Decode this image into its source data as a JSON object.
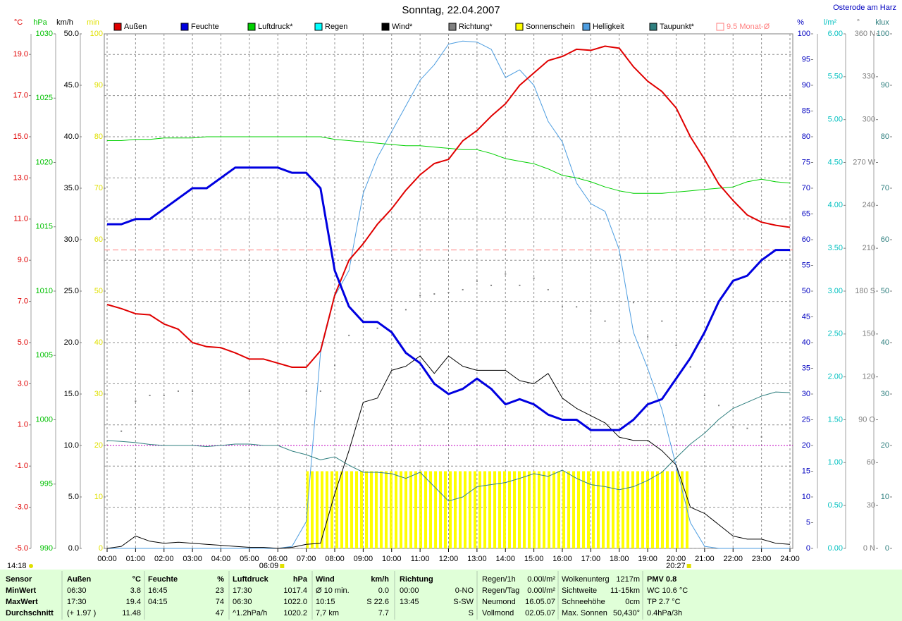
{
  "chart_data": {
    "type": "line",
    "title": "Sonntag, 22.04.2007",
    "location": "Osterode am Harz",
    "xlim": [
      0,
      24
    ],
    "xticks": [
      {
        "value": 0,
        "label": "00:00"
      },
      {
        "value": 1,
        "label": "01:00"
      },
      {
        "value": 2,
        "label": "02:00"
      },
      {
        "value": 3,
        "label": "03:00"
      },
      {
        "value": 4,
        "label": "04:00"
      },
      {
        "value": 5,
        "label": "05:00"
      },
      {
        "value": 6,
        "label": "06:00"
      },
      {
        "value": 7,
        "label": "07:00"
      },
      {
        "value": 8,
        "label": "08:00"
      },
      {
        "value": 9,
        "label": "09:00"
      },
      {
        "value": 10,
        "label": "10:00"
      },
      {
        "value": 11,
        "label": "11:00"
      },
      {
        "value": 12,
        "label": "12:00"
      },
      {
        "value": 13,
        "label": "13:00"
      },
      {
        "value": 14,
        "label": "14:00"
      },
      {
        "value": 15,
        "label": "15:00"
      },
      {
        "value": 16,
        "label": "16:00"
      },
      {
        "value": 17,
        "label": "17:00"
      },
      {
        "value": 18,
        "label": "18:00"
      },
      {
        "value": 19,
        "label": "19:00"
      },
      {
        "value": 20,
        "label": "20:00"
      },
      {
        "value": 21,
        "label": "21:00"
      },
      {
        "value": 22,
        "label": "22:00"
      },
      {
        "value": 23,
        "label": "23:00"
      },
      {
        "value": 24,
        "label": "24:00"
      }
    ],
    "xgrid": true,
    "x": [
      0,
      0.5,
      1,
      1.5,
      2,
      2.5,
      3,
      3.5,
      4,
      4.5,
      5,
      5.5,
      6,
      6.5,
      7,
      7.5,
      8,
      8.5,
      9,
      9.5,
      10,
      10.5,
      11,
      11.5,
      12,
      12.5,
      13,
      13.5,
      14,
      14.5,
      15,
      15.5,
      16,
      16.5,
      17,
      17.5,
      18,
      18.5,
      19,
      19.5,
      20,
      20.5,
      21,
      21.5,
      22,
      22.5,
      23,
      23.5,
      24
    ],
    "time_label": "14:18",
    "sunrise": {
      "value": 6.15,
      "label": "06:09"
    },
    "sunset": {
      "value": 20.45,
      "label": "20:27"
    },
    "axes": [
      {
        "unit": "°C",
        "color": "#e00000",
        "ylim": [
          -5,
          20
        ],
        "grid": true,
        "yticks": [
          {
            "value": -5,
            "label": "-5.0"
          },
          {
            "value": -3,
            "label": "-3.0"
          },
          {
            "value": -1,
            "label": "-1.0"
          },
          {
            "value": 1,
            "label": "1.0"
          },
          {
            "value": 3,
            "label": "3.0"
          },
          {
            "value": 5,
            "label": "5.0"
          },
          {
            "value": 7,
            "label": "7.0"
          },
          {
            "value": 9,
            "label": "9.0"
          },
          {
            "value": 11,
            "label": "11.0"
          },
          {
            "value": 13,
            "label": "13.0"
          },
          {
            "value": 15,
            "label": "15.0"
          },
          {
            "value": 17,
            "label": "17.0"
          },
          {
            "value": 19,
            "label": "19.0"
          }
        ]
      },
      {
        "unit": "hPa",
        "color": "#00c000",
        "ylim": [
          990,
          1030
        ],
        "yticks": [
          990,
          995,
          1000,
          1005,
          1010,
          1015,
          1020,
          1025,
          1030
        ]
      },
      {
        "unit": "km/h",
        "color": "#000000",
        "ylim": [
          0,
          50
        ],
        "yticks": [
          {
            "value": 0,
            "label": "0.0"
          },
          {
            "value": 5,
            "label": "5.0"
          },
          {
            "value": 10,
            "label": "10.0"
          },
          {
            "value": 15,
            "label": "15.0"
          },
          {
            "value": 20,
            "label": "20.0"
          },
          {
            "value": 25,
            "label": "25.0"
          },
          {
            "value": 30,
            "label": "30.0"
          },
          {
            "value": 35,
            "label": "35.0"
          },
          {
            "value": 40,
            "label": "40.0"
          },
          {
            "value": 45,
            "label": "45.0"
          },
          {
            "value": 50,
            "label": "50.0"
          }
        ]
      },
      {
        "unit": "min",
        "color": "#e0e000",
        "ylim": [
          0,
          100
        ],
        "yticks": [
          0,
          10,
          20,
          30,
          40,
          50,
          60,
          70,
          80,
          90,
          100
        ]
      },
      {
        "unit": "%",
        "color": "#0000c0",
        "ylim": [
          0,
          100
        ],
        "yticks": [
          0,
          5,
          10,
          15,
          20,
          25,
          30,
          35,
          40,
          45,
          50,
          55,
          60,
          65,
          70,
          75,
          80,
          85,
          90,
          95,
          100
        ]
      },
      {
        "unit": "l/m²",
        "color": "#00c0c0",
        "ylim": [
          0,
          6
        ],
        "yticks": [
          {
            "value": 0,
            "label": "0.00"
          },
          {
            "value": 0.5,
            "label": "0.50"
          },
          {
            "value": 1,
            "label": "1.00"
          },
          {
            "value": 1.5,
            "label": "1.50"
          },
          {
            "value": 2,
            "label": "2.00"
          },
          {
            "value": 2.5,
            "label": "2.50"
          },
          {
            "value": 3,
            "label": "3.00"
          },
          {
            "value": 3.5,
            "label": "3.50"
          },
          {
            "value": 4,
            "label": "4.00"
          },
          {
            "value": 4.5,
            "label": "4.50"
          },
          {
            "value": 5,
            "label": "5.00"
          },
          {
            "value": 5.5,
            "label": "5.50"
          },
          {
            "value": 6,
            "label": "6.00"
          }
        ]
      },
      {
        "unit": "°",
        "color": "#808080",
        "ylim": [
          0,
          360
        ],
        "yticks": [
          {
            "value": 0,
            "label": "0 N"
          },
          30,
          60,
          {
            "value": 90,
            "label": "90 O"
          },
          120,
          150,
          {
            "value": 180,
            "label": "180 S"
          },
          210,
          240,
          {
            "value": 270,
            "label": "270 W"
          },
          300,
          330,
          {
            "value": 360,
            "label": "360 N"
          }
        ]
      },
      {
        "unit": "klux",
        "color": "#308080",
        "ylim": [
          0,
          100
        ],
        "yticks": [
          0,
          10,
          20,
          30,
          40,
          50,
          60,
          70,
          80,
          90,
          100
        ]
      }
    ],
    "reference_lines": [
      {
        "axis": 2,
        "value": 10,
        "color": "#c000c0"
      }
    ],
    "series": [
      {
        "name": "Außen",
        "color": "#e00000",
        "axis": 0,
        "values": [
          6.85,
          6.65,
          6.4,
          6.35,
          5.9,
          5.65,
          5.0,
          4.8,
          4.75,
          4.5,
          4.2,
          4.2,
          4.0,
          3.8,
          3.8,
          4.6,
          7.3,
          9.0,
          9.8,
          10.75,
          11.5,
          12.4,
          13.15,
          13.7,
          13.9,
          14.8,
          15.3,
          16.0,
          16.6,
          17.5,
          18.1,
          18.7,
          18.9,
          19.25,
          19.2,
          19.4,
          19.3,
          18.4,
          17.7,
          17.2,
          16.4,
          15.0,
          13.9,
          12.7,
          11.9,
          11.2,
          10.85,
          10.7,
          10.6
        ]
      },
      {
        "name": "Feuchte",
        "color": "#0000e0",
        "axis": 4,
        "values": [
          63,
          63,
          64,
          64,
          66,
          68,
          70,
          70,
          72,
          74,
          74,
          74,
          74,
          73,
          73,
          70,
          54,
          47,
          44,
          44,
          42,
          38,
          36,
          32,
          30,
          31,
          33,
          31,
          28,
          29,
          28,
          26,
          25,
          25,
          23,
          23,
          23,
          25,
          28,
          29,
          33,
          37,
          42,
          48,
          52,
          53,
          56,
          58,
          58
        ]
      },
      {
        "name": "Luftdruck*",
        "color": "#00d000",
        "axis": 1,
        "values": [
          1021.7,
          1021.7,
          1021.8,
          1021.8,
          1021.9,
          1021.9,
          1021.9,
          1022.0,
          1022.0,
          1022.0,
          1022.0,
          1022.0,
          1022.0,
          1022.0,
          1022.0,
          1022.0,
          1021.8,
          1021.7,
          1021.6,
          1021.5,
          1021.4,
          1021.3,
          1021.3,
          1021.2,
          1021.1,
          1021.0,
          1021.0,
          1020.7,
          1020.3,
          1020.1,
          1019.9,
          1019.5,
          1019.0,
          1018.8,
          1018.5,
          1018.1,
          1017.8,
          1017.6,
          1017.6,
          1017.6,
          1017.7,
          1017.8,
          1017.9,
          1018.0,
          1018.1,
          1018.5,
          1018.7,
          1018.5,
          1018.4
        ]
      },
      {
        "name": "Regen",
        "color": "#00ffff",
        "axis": 5
      },
      {
        "name": "Wind*",
        "color": "#000000",
        "axis": 2,
        "values": [
          0,
          0.2,
          1.2,
          0.7,
          0.5,
          0.6,
          0.5,
          0.4,
          0.3,
          0.2,
          0.1,
          0.1,
          0,
          0.1,
          0.4,
          0.5,
          5.3,
          9.5,
          14.2,
          14.6,
          17.3,
          17.7,
          18.7,
          17,
          18.7,
          17.7,
          17.3,
          17.3,
          17.3,
          16.3,
          16,
          17,
          14.6,
          13.6,
          12.9,
          12.2,
          10.8,
          10.5,
          10.5,
          9.5,
          8.1,
          4,
          3.4,
          2.3,
          1.2,
          0.9,
          0.9,
          0.5,
          0.4
        ]
      },
      {
        "name": "Richtung*",
        "color": "#808080",
        "axis": 6,
        "type": "dots",
        "values": [
          null,
          82,
          103,
          107,
          107,
          110,
          110,
          null,
          null,
          null,
          110,
          null,
          null,
          null,
          110,
          110,
          128,
          149,
          159,
          154,
          167,
          167,
          177,
          178,
          179,
          181,
          187,
          184,
          192,
          184,
          189,
          181,
          169,
          169,
          166,
          159,
          145,
          172,
          148,
          159,
          142,
          127,
          107,
          100,
          85,
          84,
          78,
          null,
          null
        ]
      },
      {
        "name": "Sonnenschein",
        "color": "#ffff00",
        "axis": 3,
        "type": "bars",
        "values": [
          0,
          0,
          0,
          0,
          0,
          0,
          0,
          0,
          0,
          0,
          0,
          0,
          0,
          0,
          15,
          15,
          15,
          15,
          15,
          15,
          15,
          15,
          15,
          15,
          15,
          15,
          15,
          15,
          15,
          15,
          15,
          15,
          15,
          15,
          15,
          15,
          15,
          15,
          15,
          15,
          15,
          0,
          0,
          0,
          0,
          0,
          0,
          0,
          0
        ]
      },
      {
        "name": "Helligkeit",
        "color": "#4d9de0",
        "axis": 7,
        "values": [
          0,
          0,
          0,
          0,
          0,
          0,
          0,
          0,
          0,
          0,
          0,
          0,
          0,
          0.4,
          5.2,
          38,
          49,
          54,
          69,
          76,
          81,
          86,
          91,
          94,
          98,
          98.6,
          98.4,
          97,
          91.5,
          93,
          90,
          83,
          79,
          71,
          67,
          65.5,
          58,
          42,
          35,
          27,
          16,
          5,
          0.4,
          0,
          0,
          0,
          0,
          0,
          0
        ]
      },
      {
        "name": "Taupunkt*",
        "color": "#2f7f7f",
        "axis": 0,
        "values": [
          0.24,
          0.2,
          0.14,
          0.05,
          0,
          0,
          0,
          -0.05,
          0,
          0.07,
          0.07,
          0,
          0,
          -0.27,
          -0.45,
          -0.7,
          -0.55,
          -0.96,
          -1.3,
          -1.3,
          -1.37,
          -1.6,
          -1.3,
          -2.0,
          -2.7,
          -2.5,
          -2.0,
          -1.9,
          -1.8,
          -1.6,
          -1.37,
          -1.5,
          -1.2,
          -1.6,
          -1.9,
          -2.0,
          -2.15,
          -2.0,
          -1.7,
          -1.3,
          -0.6,
          0.07,
          0.6,
          1.27,
          1.8,
          2.1,
          2.4,
          2.6,
          2.57
        ]
      },
      {
        "name": "9.5 Monat-Ø",
        "color": "#ff8080",
        "axis": 0,
        "type": "hline",
        "value": 9.5
      }
    ]
  },
  "table": {
    "columns": [
      {
        "rows": [
          [
            "Sensor",
            null
          ],
          [
            "MinWert",
            null
          ],
          [
            "MaxWert",
            null
          ],
          [
            "Durchschnitt",
            null
          ]
        ]
      },
      {
        "rows": [
          [
            "Außen",
            "°C"
          ],
          [
            "06:30",
            "3.8"
          ],
          [
            "17:30",
            "19.4"
          ],
          [
            "(+ 1.97 )",
            "11.48"
          ]
        ]
      },
      {
        "rows": [
          [
            "Feuchte",
            "%"
          ],
          [
            "16:45",
            "23"
          ],
          [
            "04:15",
            "74"
          ],
          [
            null,
            "47"
          ]
        ]
      },
      {
        "rows": [
          [
            "Luftdruck",
            "hPa"
          ],
          [
            "17:30",
            "1017.4"
          ],
          [
            "06:30",
            "1022.0"
          ],
          [
            "^1.2hPa/h",
            "1020.2"
          ]
        ]
      },
      {
        "rows": [
          [
            "Wind",
            "km/h"
          ],
          [
            "Ø 10 min.",
            "0.0"
          ],
          [
            "10:15",
            "S 22.6"
          ],
          [
            "7,7 km",
            "7.7"
          ]
        ]
      },
      {
        "rows": [
          [
            "Richtung",
            null
          ],
          [
            "00:00",
            "0-NO"
          ],
          [
            "13:45",
            "S-SW"
          ],
          [
            null,
            "S"
          ]
        ]
      },
      {
        "rows": [
          [
            "Regen/1h",
            "0.00l/m²"
          ],
          [
            "Regen/Tag",
            "0.00l/m²"
          ],
          [
            "Neumond",
            "16.05.07"
          ],
          [
            "Vollmond",
            "02.05.07"
          ]
        ]
      },
      {
        "rows": [
          [
            "Wolkenunterg",
            "1217m"
          ],
          [
            "Sichtweite",
            "11-15km"
          ],
          [
            "Schneehöhe",
            "0cm"
          ],
          [
            "Max. Sonnen",
            "50,430°"
          ]
        ]
      },
      {
        "rows": [
          [
            "PMV 0.8",
            null
          ],
          [
            "WC 10.6 °C",
            null
          ],
          [
            "TP 2.7 °C",
            null
          ],
          [
            "0.4hPa/3h",
            null
          ]
        ]
      }
    ]
  }
}
